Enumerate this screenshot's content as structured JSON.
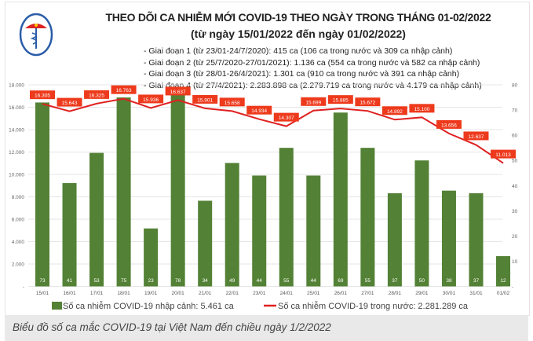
{
  "header": {
    "logo_text": "BỘ Y TẾ",
    "title": "THEO DÕI CA NHIỄM MỚI COVID-19 THEO NGÀY TRONG THÁNG 01-02/2022",
    "subtitle": "(từ ngày 15/01/2022 đến ngày 01/02/2022)",
    "phases": [
      "- Giai đoạn 1 (từ 23/01-24/7/2020): 415 ca (106 ca trong nước và 309 ca nhập cảnh)",
      "- Giai đoạn 2 (từ 25/7/2020-27/01/2021): 1.136 ca (554 ca trong nước và 582 ca nhập cảnh)",
      "- Giai đoạn 3 (từ 28/01-26/4/2021): 1.301 ca (910 ca trong nước và 391 ca nhập cảnh)",
      "- Giai đoạn 4 (từ 27/4/2021): 2.283.898 ca (2.279.719 ca trong nước và 4.179 ca nhập cảnh)"
    ]
  },
  "chart_data": {
    "type": "bar+line",
    "categories": [
      "15/01",
      "16/01",
      "17/01",
      "18/01",
      "19/01",
      "20/01",
      "21/01",
      "22/01",
      "23/01",
      "24/01",
      "25/01",
      "26/01",
      "27/01",
      "28/01",
      "29/01",
      "30/01",
      "31/01",
      "01/02"
    ],
    "series": [
      {
        "name": "Số ca nhiễm COVID-19 nhập cảnh: 5.461 ca",
        "type": "bar",
        "axis": "right",
        "color": "#538135",
        "values": [
          73,
          41,
          53,
          75,
          23,
          78,
          34,
          49,
          44,
          55,
          44,
          69,
          55,
          37,
          50,
          38,
          37,
          12
        ]
      },
      {
        "name": "Số ca nhiễm COVID-19 trong nước: 2.281.289 ca",
        "type": "line",
        "axis": "left",
        "color": "#e02020",
        "values": [
          16305,
          15643,
          16325,
          16763,
          15936,
          16637,
          15901,
          15658,
          14934,
          14307,
          15699,
          15885,
          15672,
          14892,
          15100,
          13656,
          12637,
          11013
        ],
        "labels": [
          "16.305",
          "15.643",
          "16.325",
          "16.763",
          "15.936",
          "16.637",
          "15.901",
          "15.658",
          "14.934",
          "14.307",
          "15.699",
          "15.885",
          "15.672",
          "14.892",
          "15.100",
          "13.656",
          "12.637",
          "11.013"
        ]
      }
    ],
    "left_axis": {
      "range": [
        0,
        18000
      ],
      "ticks": [
        "-",
        "2.000",
        "4.000",
        "6.000",
        "8.000",
        "10.000",
        "12.000",
        "14.000",
        "16.000",
        "18.000"
      ]
    },
    "right_axis": {
      "range": [
        0,
        80
      ],
      "ticks": [
        "-",
        "10",
        "20",
        "30",
        "40",
        "50",
        "60",
        "70",
        "80"
      ]
    },
    "grid": true,
    "legend": "bottom"
  },
  "caption": "Biểu đồ số ca mắc COVID-19 tại Việt Nam đến chiều ngày 1/2/2022"
}
